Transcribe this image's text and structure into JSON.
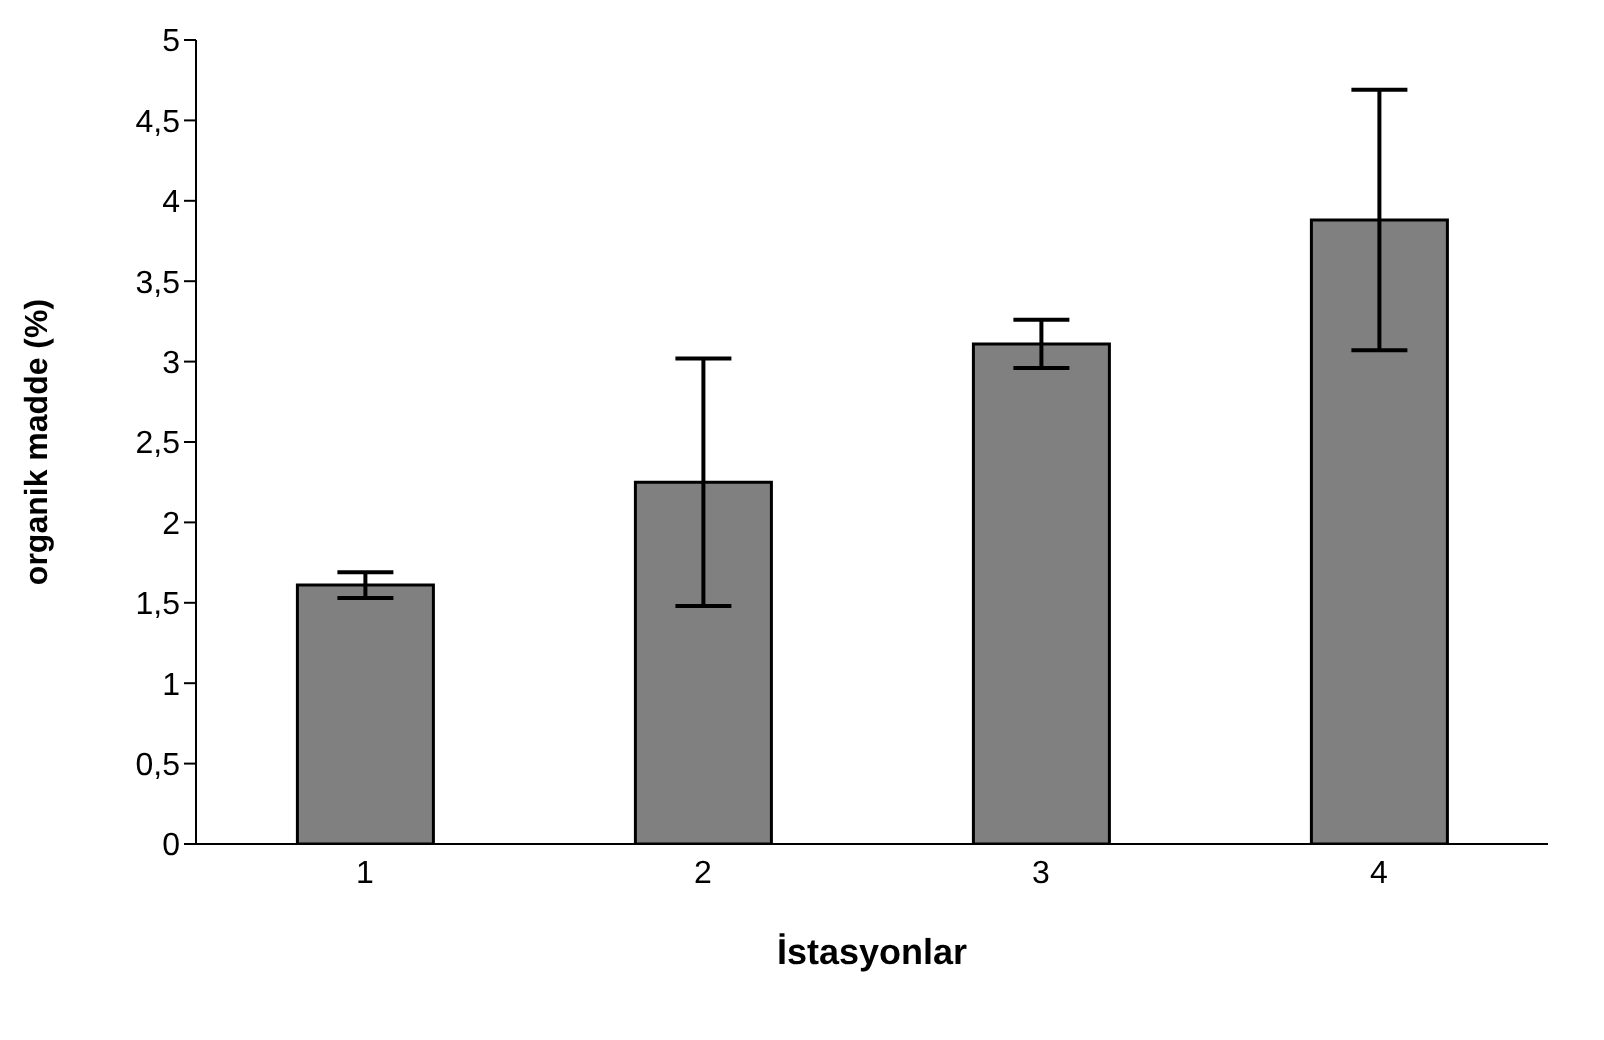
{
  "chart_data": {
    "type": "bar",
    "xlabel": "İstasyonlar",
    "ylabel": "organik madde (%)",
    "categories": [
      "1",
      "2",
      "3",
      "4"
    ],
    "values": [
      1.61,
      2.25,
      3.11,
      3.88
    ],
    "errors": [
      0.08,
      0.77,
      0.15,
      0.81
    ],
    "color": "#808080",
    "ylim": [
      0,
      5
    ],
    "yticks": [
      0,
      {
        "value": 0.5,
        "label": "0,5"
      },
      1,
      {
        "value": 1.5,
        "label": "1,5"
      },
      2,
      {
        "value": 2.5,
        "label": "2,5"
      },
      3,
      {
        "value": 3.5,
        "label": "3,5"
      },
      4,
      {
        "value": 4.5,
        "label": "4,5"
      },
      5
    ],
    "grid": false,
    "legend": false
  }
}
